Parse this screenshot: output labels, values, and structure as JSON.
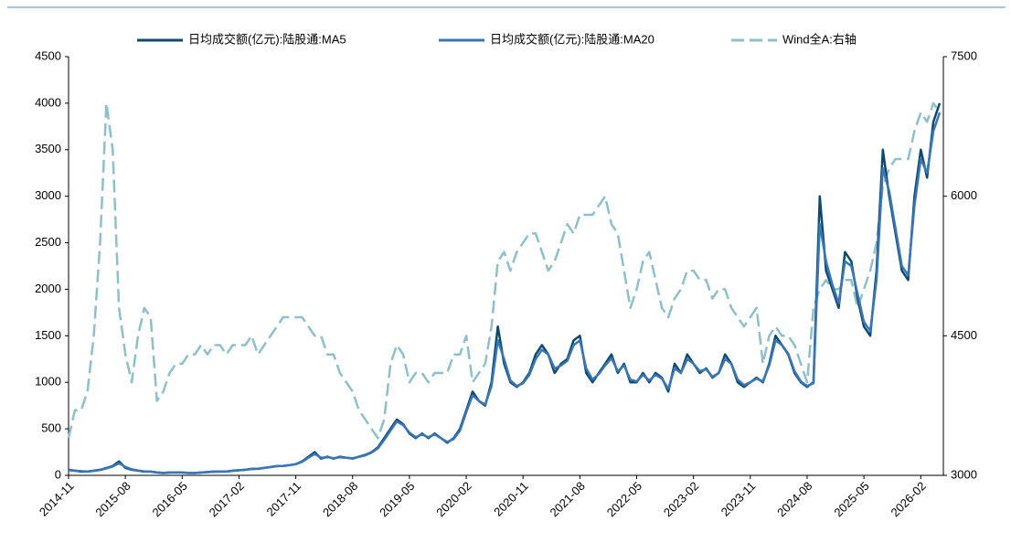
{
  "chart_data": {
    "type": "line",
    "x": [
      "2014-11",
      "2014-12",
      "2015-01",
      "2015-02",
      "2015-03",
      "2015-04",
      "2015-05",
      "2015-06",
      "2015-07",
      "2015-08",
      "2015-09",
      "2015-10",
      "2015-11",
      "2015-12",
      "2016-01",
      "2016-02",
      "2016-03",
      "2016-04",
      "2016-05",
      "2016-06",
      "2016-07",
      "2016-08",
      "2016-09",
      "2016-10",
      "2016-11",
      "2016-12",
      "2017-01",
      "2017-02",
      "2017-03",
      "2017-04",
      "2017-05",
      "2017-06",
      "2017-07",
      "2017-08",
      "2017-09",
      "2017-10",
      "2017-11",
      "2017-12",
      "2018-01",
      "2018-02",
      "2018-03",
      "2018-04",
      "2018-05",
      "2018-06",
      "2018-07",
      "2018-08",
      "2018-09",
      "2018-10",
      "2018-11",
      "2018-12",
      "2019-01",
      "2019-02",
      "2019-03",
      "2019-04",
      "2019-05",
      "2019-06",
      "2019-07",
      "2019-08",
      "2019-09",
      "2019-10",
      "2019-11",
      "2019-12",
      "2020-01",
      "2020-02",
      "2020-03",
      "2020-04",
      "2020-05",
      "2020-06",
      "2020-07",
      "2020-08",
      "2020-09",
      "2020-10",
      "2020-11",
      "2020-12",
      "2021-01",
      "2021-02",
      "2021-03",
      "2021-04",
      "2021-05",
      "2021-06",
      "2021-07",
      "2021-08",
      "2021-09",
      "2021-10",
      "2021-11",
      "2021-12",
      "2022-01",
      "2022-02",
      "2022-03",
      "2022-04",
      "2022-05",
      "2022-06",
      "2022-07",
      "2022-08",
      "2022-09",
      "2022-10",
      "2022-11",
      "2022-12",
      "2023-01",
      "2023-02",
      "2023-03",
      "2023-04",
      "2023-05",
      "2023-06",
      "2023-07",
      "2023-08",
      "2023-09",
      "2023-10",
      "2023-11",
      "2023-12",
      "2024-01",
      "2024-02",
      "2024-03",
      "2024-04",
      "2024-05",
      "2024-06",
      "2024-07",
      "2024-08",
      "2024-09",
      "2024-10",
      "2024-11",
      "2024-12",
      "2025-01",
      "2025-02",
      "2025-03",
      "2025-04",
      "2025-05",
      "2025-06",
      "2025-07",
      "2025-08",
      "2025-09",
      "2025-10",
      "2025-11",
      "2025-12",
      "2026-01",
      "2026-02",
      "2026-03",
      "2026-04",
      "2026-05"
    ],
    "xticks": [
      "2014-11",
      "2015-08",
      "2016-05",
      "2017-02",
      "2017-11",
      "2018-08",
      "2019-05",
      "2020-02",
      "2020-11",
      "2021-08",
      "2022-05",
      "2023-02",
      "2023-11",
      "2024-08",
      "2025-05",
      "2026-02"
    ],
    "ylim": [
      0,
      4500
    ],
    "yticks": [
      0,
      500,
      1000,
      1500,
      2000,
      2500,
      3000,
      3500,
      4000,
      4500
    ],
    "y2lim": [
      3000,
      7500
    ],
    "y2ticks": [
      3000,
      4500,
      6000,
      7500
    ],
    "legend": "top",
    "series": [
      {
        "name": "日均成交额(亿元):陆股通:MA5",
        "color": "#0d4a6b",
        "values": [
          60,
          50,
          40,
          40,
          50,
          60,
          80,
          100,
          150,
          80,
          60,
          50,
          40,
          40,
          30,
          25,
          30,
          30,
          30,
          25,
          25,
          30,
          35,
          40,
          40,
          40,
          50,
          55,
          60,
          70,
          70,
          80,
          90,
          100,
          100,
          110,
          120,
          150,
          200,
          250,
          180,
          200,
          180,
          200,
          190,
          180,
          200,
          220,
          250,
          300,
          400,
          500,
          600,
          550,
          450,
          400,
          450,
          400,
          450,
          400,
          350,
          400,
          500,
          700,
          900,
          800,
          750,
          1000,
          1600,
          1200,
          1000,
          950,
          1000,
          1100,
          1300,
          1400,
          1300,
          1100,
          1200,
          1250,
          1450,
          1500,
          1100,
          1000,
          1100,
          1200,
          1300,
          1100,
          1200,
          1000,
          1000,
          1100,
          1000,
          1100,
          1050,
          900,
          1200,
          1100,
          1300,
          1200,
          1100,
          1150,
          1050,
          1100,
          1300,
          1200,
          1000,
          950,
          1000,
          1050,
          1000,
          1200,
          1500,
          1400,
          1300,
          1100,
          1000,
          950,
          1000,
          3000,
          2200,
          2000,
          1800,
          2400,
          2300,
          1900,
          1600,
          1500,
          2200,
          3500,
          3000,
          2600,
          2200,
          2100,
          3000,
          3500,
          3200,
          3800,
          4000
        ]
      },
      {
        "name": "日均成交额(亿元):陆股通:MA20",
        "color": "#3a76b5",
        "values": [
          55,
          50,
          45,
          42,
          48,
          58,
          75,
          95,
          130,
          90,
          65,
          52,
          42,
          40,
          32,
          28,
          30,
          30,
          30,
          27,
          26,
          30,
          34,
          38,
          40,
          42,
          48,
          54,
          60,
          68,
          72,
          80,
          88,
          98,
          102,
          110,
          120,
          145,
          190,
          230,
          190,
          195,
          185,
          195,
          190,
          185,
          198,
          215,
          245,
          290,
          380,
          480,
          580,
          540,
          460,
          410,
          440,
          410,
          440,
          400,
          360,
          390,
          480,
          680,
          860,
          800,
          760,
          960,
          1450,
          1250,
          1020,
          960,
          990,
          1080,
          1250,
          1350,
          1300,
          1150,
          1180,
          1230,
          1400,
          1450,
          1150,
          1030,
          1090,
          1180,
          1260,
          1120,
          1180,
          1030,
          1010,
          1080,
          1020,
          1080,
          1040,
          930,
          1150,
          1100,
          1250,
          1200,
          1120,
          1140,
          1060,
          1100,
          1250,
          1200,
          1030,
          970,
          1000,
          1040,
          1010,
          1180,
          1450,
          1400,
          1310,
          1120,
          1010,
          960,
          990,
          2700,
          2300,
          2050,
          1850,
          2300,
          2250,
          1950,
          1650,
          1550,
          2100,
          3300,
          3050,
          2650,
          2250,
          2150,
          2900,
          3400,
          3250,
          3700,
          3900
        ]
      },
      {
        "name": "Wind全A:右轴",
        "color": "#8fbfc7",
        "axis": "y2",
        "dashed": true,
        "values": [
          3400,
          3700,
          3700,
          3900,
          4500,
          5500,
          7000,
          6500,
          4800,
          4300,
          4000,
          4500,
          4800,
          4700,
          3800,
          3900,
          4100,
          4200,
          4200,
          4300,
          4300,
          4400,
          4300,
          4400,
          4400,
          4300,
          4400,
          4400,
          4400,
          4500,
          4300,
          4400,
          4500,
          4600,
          4700,
          4700,
          4700,
          4700,
          4600,
          4500,
          4500,
          4300,
          4300,
          4100,
          4000,
          3900,
          3700,
          3600,
          3500,
          3400,
          3600,
          4200,
          4400,
          4300,
          4000,
          4100,
          4100,
          4000,
          4100,
          4100,
          4100,
          4300,
          4300,
          4500,
          4000,
          4100,
          4200,
          4600,
          5300,
          5400,
          5200,
          5400,
          5500,
          5600,
          5600,
          5400,
          5200,
          5300,
          5500,
          5700,
          5600,
          5800,
          5800,
          5800,
          5900,
          6000,
          5700,
          5600,
          5200,
          4800,
          5000,
          5300,
          5400,
          5100,
          4800,
          4700,
          4900,
          5000,
          5200,
          5200,
          5100,
          5100,
          4900,
          5000,
          5000,
          4800,
          4700,
          4600,
          4700,
          4800,
          4200,
          4500,
          4600,
          4500,
          4500,
          4400,
          4200,
          4000,
          4800,
          5000,
          5100,
          5000,
          5000,
          5100,
          5100,
          4800,
          5000,
          5200,
          5500,
          6100,
          6300,
          6400,
          6400,
          6400,
          6700,
          6900,
          6800,
          7000,
          6900
        ]
      }
    ]
  }
}
